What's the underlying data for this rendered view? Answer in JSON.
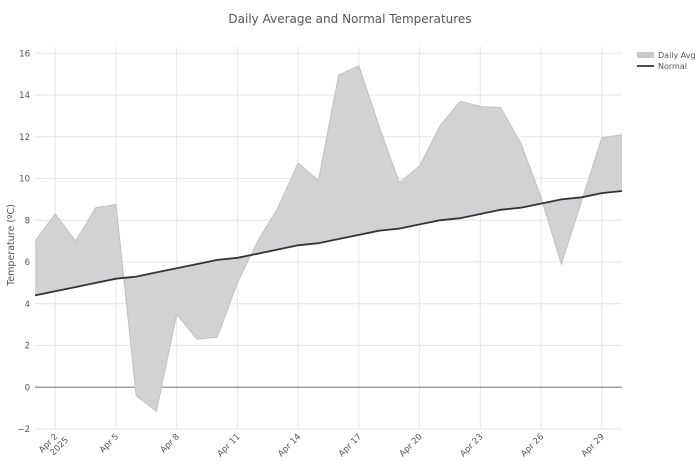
{
  "chart_data": {
    "type": "area",
    "title": "Daily Average and Normal Temperatures",
    "ylabel": "Temperature (ºC)",
    "xlabel": "",
    "x_start": "2025-04-01",
    "x": [
      "2025-04-01",
      "2025-04-02",
      "2025-04-03",
      "2025-04-04",
      "2025-04-05",
      "2025-04-06",
      "2025-04-07",
      "2025-04-08",
      "2025-04-09",
      "2025-04-10",
      "2025-04-11",
      "2025-04-12",
      "2025-04-13",
      "2025-04-14",
      "2025-04-15",
      "2025-04-16",
      "2025-04-17",
      "2025-04-18",
      "2025-04-19",
      "2025-04-20",
      "2025-04-21",
      "2025-04-22",
      "2025-04-23",
      "2025-04-24",
      "2025-04-25",
      "2025-04-26",
      "2025-04-27",
      "2025-04-28",
      "2025-04-29",
      "2025-04-30"
    ],
    "xlim": [
      "2025-04-01",
      "2025-04-30"
    ],
    "ylim": [
      -2,
      16.3
    ],
    "yticks": [
      -2,
      0,
      2,
      4,
      6,
      8,
      10,
      12,
      14,
      16
    ],
    "xticks": [
      {
        "date": "2025-04-02",
        "label": "Apr 2",
        "label2": "2025"
      },
      {
        "date": "2025-04-05",
        "label": "Apr 5"
      },
      {
        "date": "2025-04-08",
        "label": "Apr 8"
      },
      {
        "date": "2025-04-11",
        "label": "Apr 11"
      },
      {
        "date": "2025-04-14",
        "label": "Apr 14"
      },
      {
        "date": "2025-04-17",
        "label": "Apr 17"
      },
      {
        "date": "2025-04-20",
        "label": "Apr 20"
      },
      {
        "date": "2025-04-23",
        "label": "Apr 23"
      },
      {
        "date": "2025-04-26",
        "label": "Apr 26"
      },
      {
        "date": "2025-04-29",
        "label": "Apr 29"
      }
    ],
    "series": [
      {
        "name": "Daily Avg",
        "color": "#c8c8c8",
        "values": [
          7.0,
          8.3,
          7.0,
          8.6,
          8.75,
          -0.4,
          -1.15,
          3.5,
          2.3,
          2.4,
          5.0,
          7.0,
          8.6,
          10.75,
          9.9,
          14.95,
          15.4,
          12.5,
          9.8,
          10.6,
          12.5,
          13.7,
          13.45,
          13.4,
          11.7,
          9.1,
          5.9,
          8.9,
          11.95,
          12.1
        ]
      },
      {
        "name": "Normal",
        "color": "#333333",
        "values": [
          4.4,
          4.6,
          4.8,
          5.0,
          5.2,
          5.3,
          5.5,
          5.7,
          5.9,
          6.1,
          6.2,
          6.4,
          6.6,
          6.8,
          6.9,
          7.1,
          7.3,
          7.5,
          7.6,
          7.8,
          8.0,
          8.1,
          8.3,
          8.5,
          8.6,
          8.8,
          9.0,
          9.1,
          9.3,
          9.4
        ]
      }
    ],
    "grid": true,
    "legend": "top-right",
    "zero_line": true
  }
}
